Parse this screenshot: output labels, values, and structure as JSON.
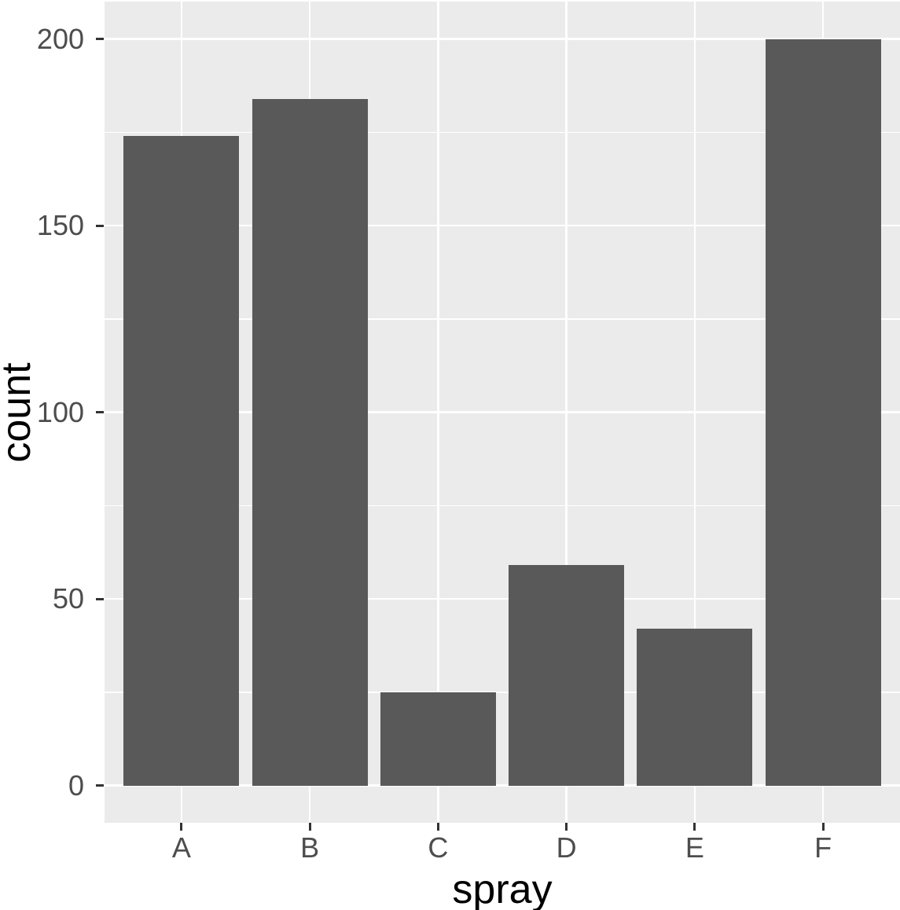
{
  "chart_data": {
    "type": "bar",
    "title": "",
    "xlabel": "spray",
    "ylabel": "count",
    "categories": [
      "A",
      "B",
      "C",
      "D",
      "E",
      "F"
    ],
    "values": [
      174,
      184,
      25,
      59,
      42,
      200
    ],
    "y_ticks": [
      0,
      50,
      100,
      150,
      200
    ],
    "y_minor_gridlines": [
      25,
      75,
      125,
      175
    ],
    "ylim": [
      0,
      200
    ],
    "legend_position": "none",
    "grid": "on",
    "style": "ggplot2-theme-gray",
    "colors": {
      "bar_fill": "#595959",
      "panel_background": "#EBEBEB",
      "gridline": "#FFFFFF",
      "tick_text": "#4D4D4D",
      "tick_mark": "#333333",
      "axis_title": "#000000",
      "page_background": "#FFFFFF"
    }
  }
}
